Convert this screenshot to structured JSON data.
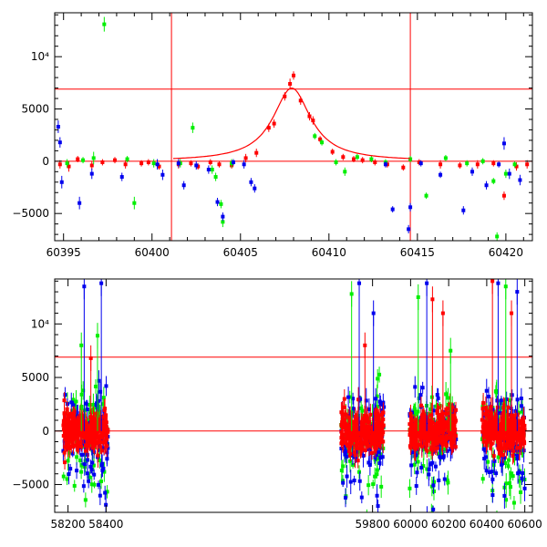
{
  "colors": {
    "red": "#ff0000",
    "green": "#00ee00",
    "blue": "#0000ee",
    "axis": "#000000",
    "background": "#ffffff"
  },
  "chart_data": [
    {
      "type": "scatter",
      "name": "zoom",
      "xlim": [
        60394.5,
        60421.5
      ],
      "ylim": [
        -7600,
        14200
      ],
      "xticks": [
        60395,
        60400,
        60405,
        60410,
        60415,
        60420
      ],
      "xtick_labels": [
        "60395",
        "60400",
        "60405",
        "60410",
        "60415",
        "60420"
      ],
      "yticks": [
        -5000,
        0,
        5000,
        10000
      ],
      "ytick_labels": [
        "−5000",
        "0",
        "5000",
        "10⁴"
      ],
      "hlines": [
        {
          "y": 6900,
          "color": "#ff0000"
        },
        {
          "y": 0,
          "color": "#ff0000"
        }
      ],
      "vlines": [
        {
          "x": 60401.1,
          "color": "#ff0000"
        },
        {
          "x": 60414.6,
          "color": "#ff0000"
        }
      ],
      "model_curve": {
        "color": "#ff0000",
        "peak_x": 60407.9,
        "peak_y": 7000,
        "width": 1.3,
        "baseline": 0,
        "x_range": [
          60401.2,
          60414.6
        ]
      },
      "series": [
        {
          "color": "#ff0000",
          "points": [
            [
              60394.8,
              -300,
              400
            ],
            [
              60395.3,
              -500,
              500
            ],
            [
              60395.8,
              200,
              300
            ],
            [
              60396.6,
              -400,
              400
            ],
            [
              60397.2,
              -100,
              300
            ],
            [
              60397.9,
              100,
              300
            ],
            [
              60398.5,
              -300,
              400
            ],
            [
              60399.4,
              -200,
              300
            ],
            [
              60399.8,
              -100,
              300
            ],
            [
              60400.4,
              -500,
              300
            ],
            [
              60401.5,
              -300,
              400
            ],
            [
              60402.2,
              -200,
              300
            ],
            [
              60402.6,
              -500,
              300
            ],
            [
              60403.3,
              -100,
              300
            ],
            [
              60403.8,
              -300,
              300
            ],
            [
              60404.5,
              -400,
              300
            ],
            [
              60405.3,
              300,
              400
            ],
            [
              60405.9,
              800,
              400
            ],
            [
              60406.6,
              3200,
              400
            ],
            [
              60406.9,
              3600,
              400
            ],
            [
              60407.5,
              6200,
              400
            ],
            [
              60407.8,
              7400,
              500
            ],
            [
              60408.0,
              8200,
              400
            ],
            [
              60408.4,
              5800,
              400
            ],
            [
              60408.9,
              4300,
              400
            ],
            [
              60409.1,
              3900,
              400
            ],
            [
              60409.5,
              2100,
              300
            ],
            [
              60410.2,
              900,
              300
            ],
            [
              60410.8,
              400,
              300
            ],
            [
              60411.4,
              200,
              300
            ],
            [
              60411.9,
              100,
              300
            ],
            [
              60412.6,
              -100,
              300
            ],
            [
              60413.3,
              -300,
              300
            ],
            [
              60414.2,
              -600,
              300
            ],
            [
              60415.1,
              -100,
              300
            ],
            [
              60416.3,
              -300,
              400
            ],
            [
              60417.4,
              -400,
              300
            ],
            [
              60418.4,
              -300,
              400
            ],
            [
              60419.3,
              -200,
              300
            ],
            [
              60419.9,
              -3300,
              400
            ],
            [
              60420.6,
              -500,
              400
            ],
            [
              60421.2,
              -300,
              400
            ]
          ]
        },
        {
          "color": "#00ee00",
          "points": [
            [
              60395.2,
              -200,
              400
            ],
            [
              60396.1,
              100,
              300
            ],
            [
              60396.7,
              300,
              600
            ],
            [
              60397.3,
              13100,
              700
            ],
            [
              60398.6,
              200,
              300
            ],
            [
              60399.0,
              -4000,
              600
            ],
            [
              60400.1,
              -200,
              400
            ],
            [
              60401.6,
              -200,
              400
            ],
            [
              60402.3,
              3200,
              500
            ],
            [
              60403.4,
              -800,
              400
            ],
            [
              60403.6,
              -1500,
              400
            ],
            [
              60403.9,
              -4100,
              400
            ],
            [
              60404.0,
              -5800,
              500
            ],
            [
              60404.5,
              -200,
              400
            ],
            [
              60409.2,
              2400,
              300
            ],
            [
              60409.6,
              1800,
              300
            ],
            [
              60410.4,
              -100,
              300
            ],
            [
              60410.9,
              -1000,
              400
            ],
            [
              60411.6,
              400,
              300
            ],
            [
              60412.4,
              200,
              300
            ],
            [
              60413.2,
              -100,
              300
            ],
            [
              60414.6,
              200,
              300
            ],
            [
              60415.5,
              -3300,
              300
            ],
            [
              60416.6,
              300,
              300
            ],
            [
              60417.8,
              -200,
              300
            ],
            [
              60418.7,
              0,
              300
            ],
            [
              60419.3,
              -1900,
              300
            ],
            [
              60419.5,
              -7200,
              400
            ],
            [
              60420.0,
              -1200,
              400
            ],
            [
              60420.5,
              -300,
              300
            ]
          ]
        },
        {
          "color": "#0000ee",
          "points": [
            [
              60394.7,
              3300,
              600
            ],
            [
              60394.8,
              1800,
              500
            ],
            [
              60394.9,
              -2000,
              600
            ],
            [
              60395.9,
              -4000,
              600
            ],
            [
              60396.6,
              -1200,
              500
            ],
            [
              60398.3,
              -1500,
              400
            ],
            [
              60400.3,
              -300,
              500
            ],
            [
              60400.6,
              -1300,
              500
            ],
            [
              60401.5,
              -200,
              400
            ],
            [
              60401.8,
              -2300,
              400
            ],
            [
              60402.5,
              -400,
              400
            ],
            [
              60403.2,
              -800,
              400
            ],
            [
              60403.7,
              -3900,
              400
            ],
            [
              60404.0,
              -5300,
              400
            ],
            [
              60404.6,
              -100,
              300
            ],
            [
              60405.2,
              -300,
              400
            ],
            [
              60405.6,
              -2000,
              400
            ],
            [
              60405.8,
              -2600,
              400
            ],
            [
              60413.2,
              -300,
              300
            ],
            [
              60413.6,
              -4600,
              300
            ],
            [
              60414.5,
              -6500,
              400
            ],
            [
              60414.6,
              -4400,
              400
            ],
            [
              60415.2,
              -200,
              300
            ],
            [
              60416.3,
              -1300,
              300
            ],
            [
              60417.6,
              -4700,
              400
            ],
            [
              60418.1,
              -1000,
              400
            ],
            [
              60418.9,
              -2300,
              400
            ],
            [
              60419.6,
              -300,
              300
            ],
            [
              60420.2,
              -1200,
              500
            ],
            [
              60420.8,
              -1800,
              500
            ],
            [
              60419.9,
              1700,
              600
            ]
          ]
        }
      ]
    },
    {
      "type": "scatter",
      "name": "overview",
      "xlim": [
        58130,
        60640
      ],
      "ylim": [
        -7600,
        14200
      ],
      "xticks": [
        58200,
        58400,
        59800,
        60000,
        60200,
        60400,
        60600
      ],
      "xtick_labels": [
        "58200",
        "58400",
        "59800",
        "60000",
        "60200",
        "60400",
        "60600"
      ],
      "yticks": [
        -5000,
        0,
        5000,
        10000
      ],
      "ytick_labels": [
        "−5000",
        "0",
        "5000",
        "10⁴"
      ],
      "hlines": [
        {
          "y": 6900,
          "color": "#ff0000"
        },
        {
          "y": 0,
          "color": "#ff0000"
        }
      ],
      "seasons": [
        [
          58175,
          58410
        ],
        [
          59635,
          59860
        ],
        [
          59995,
          60240
        ],
        [
          60375,
          60600
        ]
      ],
      "scatter_sigma": 1600,
      "spikes": [
        {
          "x": 58270,
          "y": 8000,
          "color": "#00ee00"
        },
        {
          "x": 58285,
          "y": 13500,
          "color": "#0000ee"
        },
        {
          "x": 58320,
          "y": 6800,
          "color": "#ff0000"
        },
        {
          "x": 58355,
          "y": 8900,
          "color": "#00ee00"
        },
        {
          "x": 58375,
          "y": 13800,
          "color": "#0000ee"
        },
        {
          "x": 59690,
          "y": 12800,
          "color": "#00ee00"
        },
        {
          "x": 59730,
          "y": 13800,
          "color": "#0000ee"
        },
        {
          "x": 59760,
          "y": 8000,
          "color": "#ff0000"
        },
        {
          "x": 59805,
          "y": 11000,
          "color": "#0000ee"
        },
        {
          "x": 60040,
          "y": 12500,
          "color": "#00ee00"
        },
        {
          "x": 60085,
          "y": 13800,
          "color": "#0000ee"
        },
        {
          "x": 60115,
          "y": 12300,
          "color": "#ff0000"
        },
        {
          "x": 60170,
          "y": 11000,
          "color": "#ff0000"
        },
        {
          "x": 60210,
          "y": 7500,
          "color": "#00ee00"
        },
        {
          "x": 60430,
          "y": 14000,
          "color": "#ff0000"
        },
        {
          "x": 60460,
          "y": 13800,
          "color": "#0000ee"
        },
        {
          "x": 60500,
          "y": 13500,
          "color": "#00ee00"
        },
        {
          "x": 60530,
          "y": 11000,
          "color": "#ff0000"
        },
        {
          "x": 60560,
          "y": 13000,
          "color": "#0000ee"
        }
      ]
    }
  ]
}
